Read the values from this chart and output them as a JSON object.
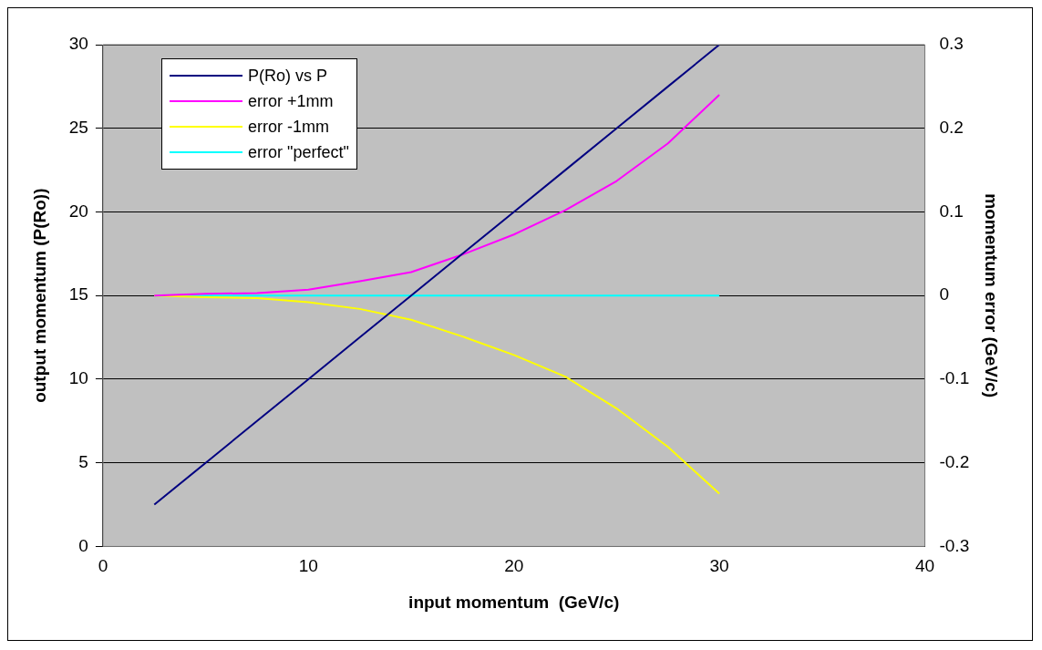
{
  "chart_data": {
    "type": "line",
    "xlabel": "input momentum  (GeV/c)",
    "ylabel": "output momentum (P(Ro))",
    "y2label": "momentum error (GeV/c)",
    "xlim": [
      0,
      40
    ],
    "xticks": [
      0,
      10,
      20,
      30,
      40
    ],
    "ylim": [
      0,
      30
    ],
    "yticks": [
      0,
      5,
      10,
      15,
      20,
      25,
      30
    ],
    "y2lim": [
      -0.3,
      0.3
    ],
    "y2ticks": [
      -0.3,
      -0.2,
      -0.1,
      0,
      0.1,
      0.2,
      0.3
    ],
    "grid": "y",
    "legend": "top left",
    "marker": "none",
    "line_style": "solid",
    "series": [
      {
        "name": "P(Ro) vs P",
        "color": "#000080",
        "x": [
          2.5,
          5,
          7.5,
          10,
          12.5,
          15,
          17.5,
          20,
          22.5,
          25,
          27.5,
          30
        ],
        "values": [
          2.5,
          5,
          7.5,
          10,
          12.5,
          15,
          17.5,
          20,
          22.5,
          25,
          27.5,
          30
        ]
      },
      {
        "name": "error +1mm",
        "color": "#ff00ff",
        "axis": "y2",
        "x": [
          2.5,
          5,
          7.5,
          10,
          12.5,
          15,
          17.5,
          20,
          22.5,
          25,
          27.5,
          30
        ],
        "values": [
          0,
          0.002,
          0.003,
          0.007,
          0.017,
          0.028,
          0.049,
          0.073,
          0.102,
          0.137,
          0.182,
          0.24
        ]
      },
      {
        "name": "error -1mm",
        "color": "#ffff00",
        "axis": "y2",
        "x": [
          2.5,
          5,
          7.5,
          10,
          12.5,
          15,
          17.5,
          20,
          22.5,
          25,
          27.5,
          30
        ],
        "values": [
          0,
          -0.002,
          -0.003,
          -0.008,
          -0.016,
          -0.029,
          -0.049,
          -0.071,
          -0.097,
          -0.135,
          -0.181,
          -0.237
        ]
      },
      {
        "name": "error \"perfect\"",
        "color": "#00ffff",
        "axis": "y2",
        "x": [
          2.5,
          30
        ],
        "values": [
          0,
          0
        ]
      }
    ]
  }
}
